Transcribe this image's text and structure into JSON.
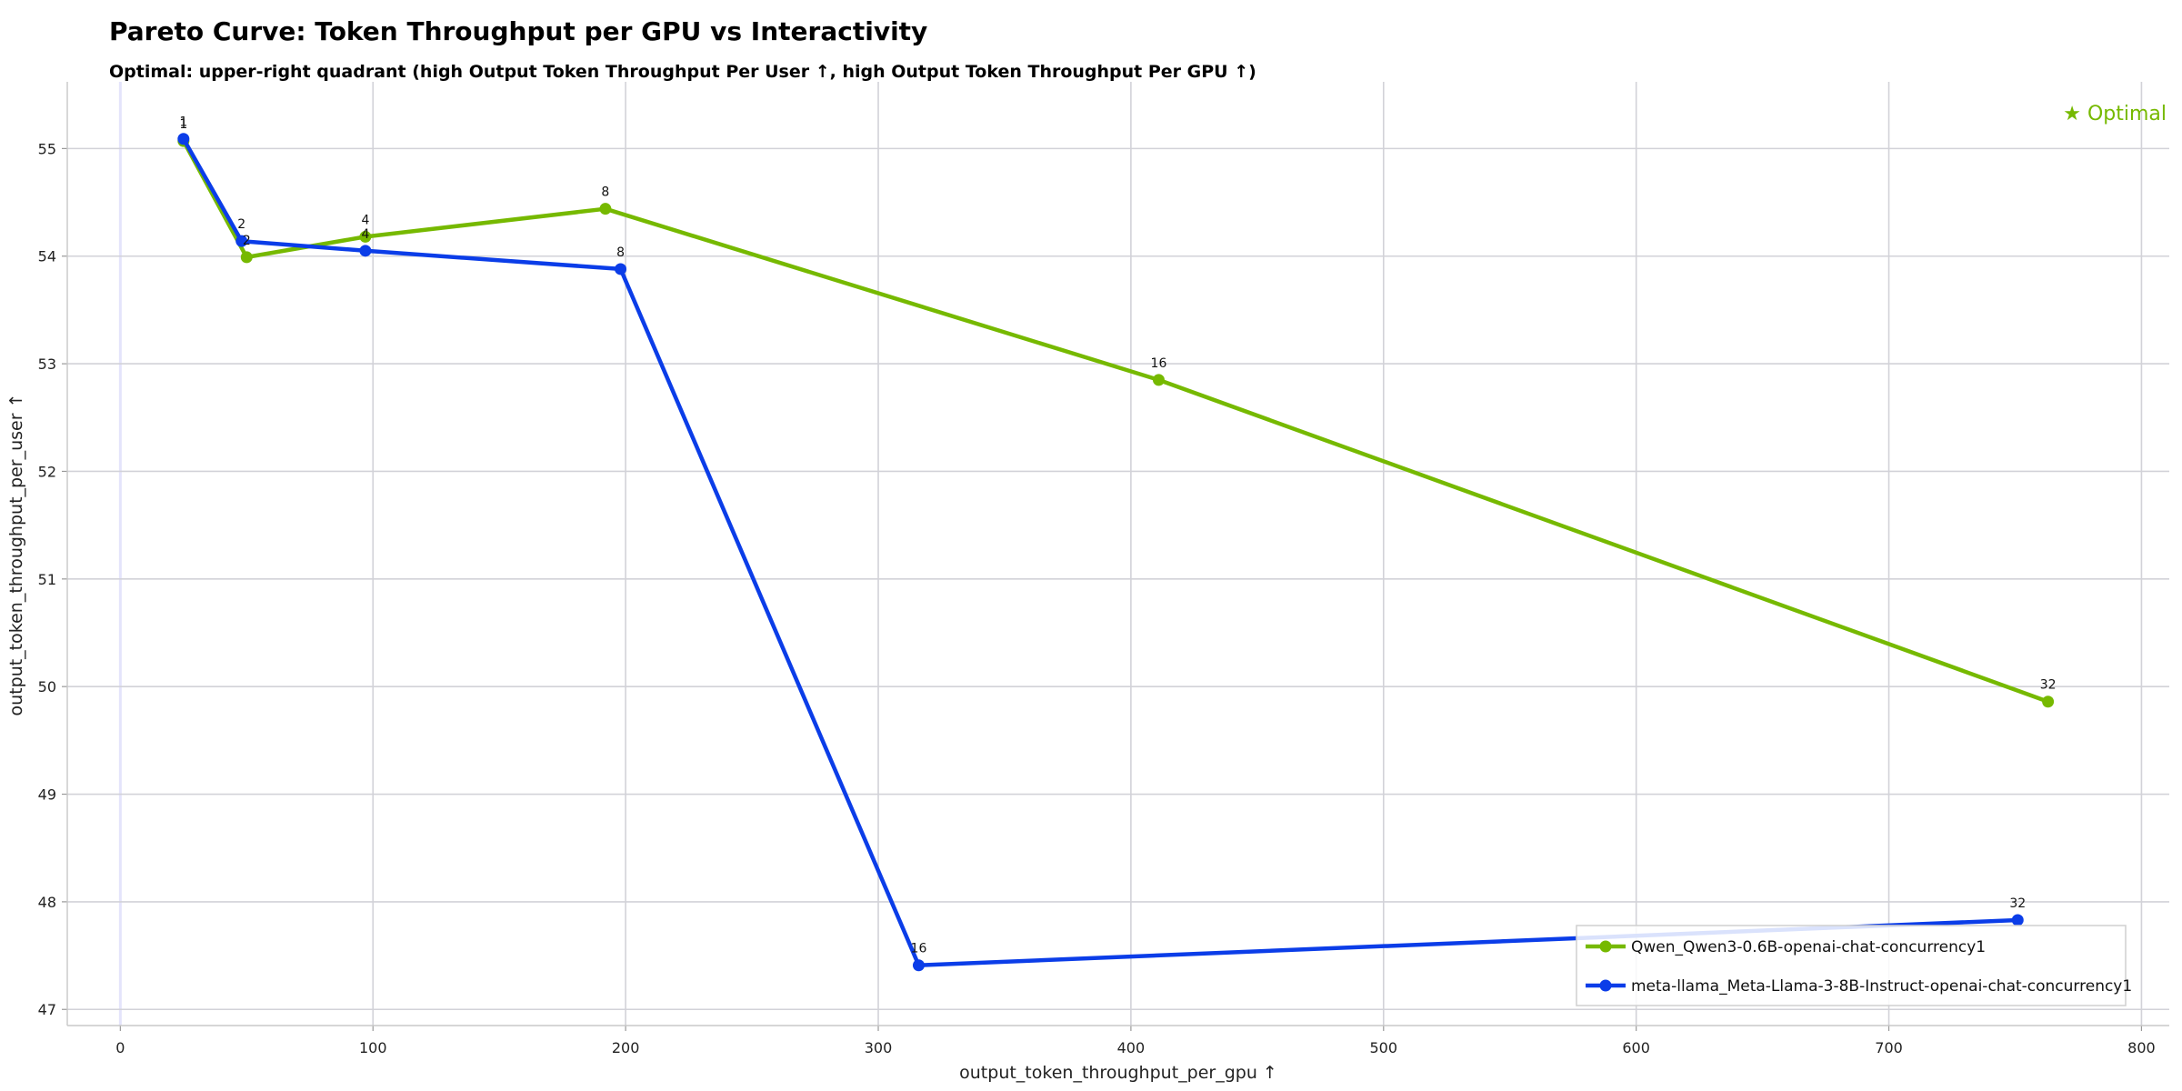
{
  "chart_data": {
    "type": "line",
    "title": "Pareto Curve: Token Throughput per GPU vs Interactivity",
    "subtitle": "Optimal: upper-right quadrant (high Output Token Throughput Per User ↑, high Output Token Throughput Per GPU ↑)",
    "xlabel": "output_token_throughput_per_gpu ↑",
    "ylabel": "output_token_throughput_per_user ↑",
    "xlim": [
      -21,
      811
    ],
    "ylim": [
      46.85,
      55.62
    ],
    "xticks": [
      0,
      100,
      200,
      300,
      400,
      500,
      600,
      700,
      800
    ],
    "yticks": [
      47,
      48,
      49,
      50,
      51,
      52,
      53,
      54,
      55
    ],
    "grid": true,
    "legend_position": "bottom-right",
    "annotation": "★ Optimal",
    "series": [
      {
        "name": "Qwen_Qwen3-0.6B-openai-chat-concurrency1",
        "color": "#76b900",
        "points": [
          {
            "x": 25,
            "y": 55.07,
            "label": "1"
          },
          {
            "x": 50,
            "y": 53.99,
            "label": "2"
          },
          {
            "x": 97,
            "y": 54.18,
            "label": "4"
          },
          {
            "x": 192,
            "y": 54.44,
            "label": "8"
          },
          {
            "x": 411,
            "y": 52.85,
            "label": "16"
          },
          {
            "x": 763,
            "y": 49.86,
            "label": "32"
          }
        ]
      },
      {
        "name": "meta-llama_Meta-Llama-3-8B-Instruct-openai-chat-concurrency1",
        "color": "#0b3de8",
        "points": [
          {
            "x": 25,
            "y": 55.09,
            "label": "1"
          },
          {
            "x": 48,
            "y": 54.14,
            "label": "2"
          },
          {
            "x": 97,
            "y": 54.05,
            "label": "4"
          },
          {
            "x": 198,
            "y": 53.88,
            "label": "8"
          },
          {
            "x": 316,
            "y": 47.41,
            "label": "16"
          },
          {
            "x": 751,
            "y": 47.83,
            "label": "32"
          }
        ]
      }
    ]
  }
}
